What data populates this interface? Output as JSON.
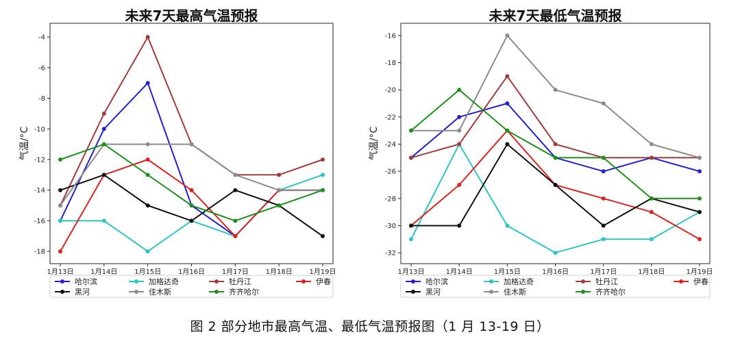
{
  "caption": "图 2 部分地市最高气温、最低气温预报图（1 月 13-19 日）",
  "series_styles": [
    {
      "name": "哈尔滨",
      "color": "#2222cc"
    },
    {
      "name": "加格达奇",
      "color": "#2ec4c4"
    },
    {
      "name": "牡丹江",
      "color": "#a03c3c"
    },
    {
      "name": "伊春",
      "color": "#dd2222"
    },
    {
      "name": "黑河",
      "color": "#111111"
    },
    {
      "name": "佳木斯",
      "color": "#8c8c8c"
    },
    {
      "name": "齐齐哈尔",
      "color": "#1f8f1f"
    }
  ],
  "chart_data": [
    {
      "type": "line",
      "title": "未来7天最高气温预报",
      "xlabel": "",
      "ylabel": "气温/°C",
      "categories": [
        "1月13日",
        "1月14日",
        "1月15日",
        "1月16日",
        "1月17日",
        "1月18日",
        "1月19日"
      ],
      "ylim": [
        -18.8,
        -3.1
      ],
      "yticks": [
        -18,
        -16,
        -14,
        -12,
        -10,
        -8,
        -6,
        -4
      ],
      "grid": false,
      "legend": "bottom",
      "series": [
        {
          "name": "哈尔滨",
          "values": [
            -16,
            -10,
            -7,
            -15,
            -17,
            -14,
            -14
          ]
        },
        {
          "name": "加格达奇",
          "values": [
            -16,
            -16,
            -18,
            -16,
            -17,
            -14,
            -13
          ]
        },
        {
          "name": "牡丹江",
          "values": [
            -15,
            -9,
            -4,
            -11,
            -13,
            -13,
            -12
          ]
        },
        {
          "name": "伊春",
          "values": [
            -18,
            -13,
            -12,
            -14,
            -17,
            -14,
            -14
          ]
        },
        {
          "name": "黑河",
          "values": [
            -14,
            -13,
            -15,
            -16,
            -14,
            -15,
            -17
          ]
        },
        {
          "name": "佳木斯",
          "values": [
            -15,
            -11,
            -11,
            -11,
            -13,
            -14,
            -14
          ]
        },
        {
          "name": "齐齐哈尔",
          "values": [
            -12,
            -11,
            -13,
            -15,
            -16,
            -15,
            -14
          ]
        }
      ]
    },
    {
      "type": "line",
      "title": "未来7天最低气温预报",
      "xlabel": "",
      "ylabel": "气温/°C",
      "categories": [
        "1月13日",
        "1月14日",
        "1月15日",
        "1月16日",
        "1月17日",
        "1月18日",
        "1月19日"
      ],
      "ylim": [
        -32.8,
        -15.1
      ],
      "yticks": [
        -32,
        -30,
        -28,
        -26,
        -24,
        -22,
        -20,
        -18,
        -16
      ],
      "grid": false,
      "legend": "bottom",
      "series": [
        {
          "name": "哈尔滨",
          "values": [
            -25,
            -22,
            -21,
            -25,
            -26,
            -25,
            -26
          ]
        },
        {
          "name": "加格达奇",
          "values": [
            -31,
            -24,
            -30,
            -32,
            -31,
            -31,
            -29
          ]
        },
        {
          "name": "牡丹江",
          "values": [
            -25,
            -24,
            -19,
            -24,
            -25,
            -25,
            -25
          ]
        },
        {
          "name": "伊春",
          "values": [
            -30,
            -27,
            -23,
            -27,
            -28,
            -29,
            -31
          ]
        },
        {
          "name": "黑河",
          "values": [
            -30,
            -30,
            -24,
            -27,
            -30,
            -28,
            -29
          ]
        },
        {
          "name": "佳木斯",
          "values": [
            -23,
            -23,
            -16,
            -20,
            -21,
            -24,
            -25
          ]
        },
        {
          "name": "齐齐哈尔",
          "values": [
            -23,
            -20,
            -23,
            -25,
            -25,
            -28,
            -28
          ]
        }
      ]
    }
  ]
}
